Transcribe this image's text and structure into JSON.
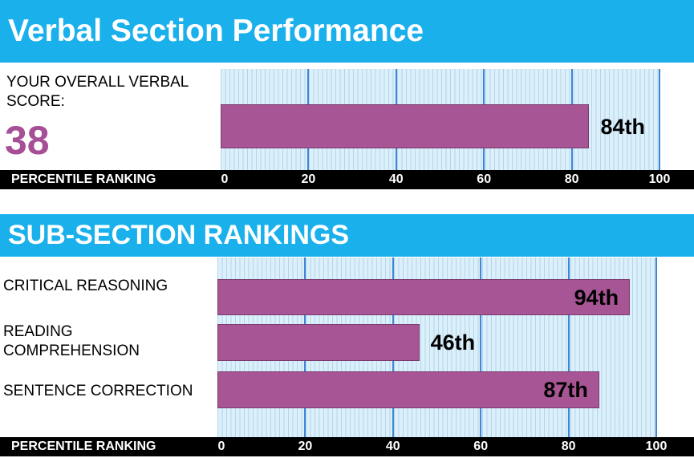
{
  "header": {
    "title": "Verbal Section Performance"
  },
  "overall": {
    "score_label": "YOUR OVERALL VERBAL SCORE:",
    "score_value": "38"
  },
  "subsection_header": {
    "title": "SUB-SECTION RANKINGS"
  },
  "axis": {
    "title": "PERCENTILE RANKING"
  },
  "colors": {
    "bar": "#a85595",
    "score": "#a64e96",
    "banner": "#1ab0ec",
    "plot_bg": "#dbf0fa",
    "gridline": "#3d86d8"
  },
  "chart_data": [
    {
      "type": "bar",
      "orientation": "horizontal",
      "categories": [
        ""
      ],
      "values": [
        84
      ],
      "data_labels": [
        "84th"
      ],
      "xlabel": "PERCENTILE RANKING",
      "xlim": [
        0,
        100
      ],
      "ticks": [
        0,
        20,
        40,
        60,
        80,
        100
      ],
      "grid": true
    },
    {
      "type": "bar",
      "orientation": "horizontal",
      "categories": [
        "CRITICAL REASONING",
        "READING COMPREHENSION",
        "SENTENCE CORRECTION"
      ],
      "values": [
        94,
        46,
        87
      ],
      "data_labels": [
        "94th",
        "46th",
        "87th"
      ],
      "xlabel": "PERCENTILE RANKING",
      "xlim": [
        0,
        100
      ],
      "ticks": [
        0,
        20,
        40,
        60,
        80,
        100
      ],
      "grid": true
    }
  ]
}
